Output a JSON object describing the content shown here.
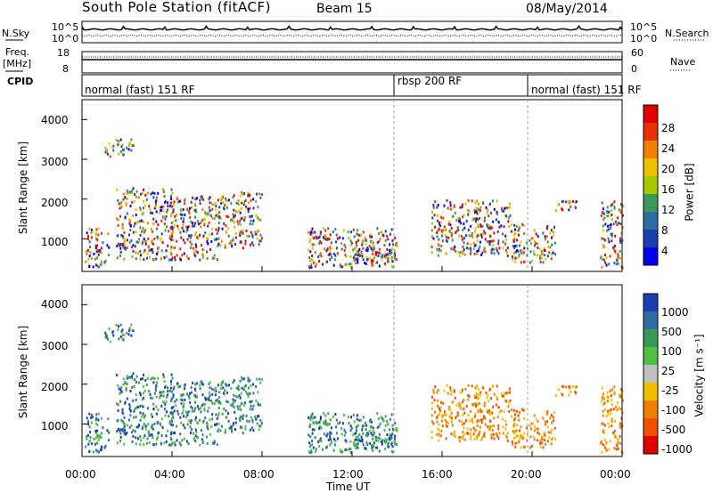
{
  "header": {
    "title": "South Pole Station (fitACF)",
    "beam": "Beam 15",
    "date": "08/May/2014"
  },
  "left_labels": {
    "nsky": "N.Sky",
    "freq_line1": "Freq.",
    "freq_line2": "[MHz]",
    "cpid": "CPID"
  },
  "right_labels": {
    "nsearch": "N.Search",
    "nave": "Nave"
  },
  "colors": {
    "power_scale": [
      "#0000ee",
      "#1a3fb0",
      "#2c6fa0",
      "#3a9a5a",
      "#a8c800",
      "#f0c000",
      "#f08000",
      "#e83000",
      "#e00000"
    ],
    "velocity_scale": [
      "#1a3fb0",
      "#2c6fa0",
      "#3a9a5a",
      "#4fc040",
      "#c0c0c0",
      "#f0c000",
      "#f08000",
      "#f05000",
      "#e00000"
    ]
  },
  "chart_data": [
    {
      "type": "line",
      "name": "noise-panel",
      "left_ticks": [
        "10^5",
        "10^0"
      ],
      "right_ticks": [
        "10^5",
        "10^0"
      ],
      "series": [
        {
          "name": "N.Sky"
        },
        {
          "name": "N.Search"
        }
      ]
    },
    {
      "type": "line",
      "name": "freq-nave-panel",
      "left_ticks": [
        "18",
        "8"
      ],
      "right_ticks": [
        "60",
        "0"
      ],
      "ylim_left": [
        8,
        18
      ],
      "ylim_right": [
        0,
        60
      ],
      "series": [
        {
          "name": "Freq.",
          "value": 12
        },
        {
          "name": "Nave",
          "value": 52
        }
      ]
    },
    {
      "type": "table",
      "name": "cpid-bar",
      "segments": [
        {
          "label": "normal (fast) 151 RF",
          "start_h": 0,
          "end_h": 14
        },
        {
          "label": "rbsp 200 RF",
          "start_h": 14,
          "end_h": 20
        },
        {
          "label": "normal (fast) 151 RF",
          "start_h": 20,
          "end_h": 24
        }
      ]
    },
    {
      "type": "heatmap",
      "name": "power-panel",
      "ylabel": "Slant Range [km]",
      "yticks": [
        "4000",
        "3000",
        "2000",
        "1000"
      ],
      "ylim": [
        180,
        4500
      ],
      "xlim": [
        0,
        24
      ],
      "colorbar_label": "Power [dB]",
      "colorbar_ticks": [
        "28",
        "24",
        "20",
        "16",
        "12",
        "8",
        "4"
      ],
      "clim": [
        0,
        30
      ]
    },
    {
      "type": "heatmap",
      "name": "velocity-panel",
      "ylabel": "Slant Range [km]",
      "yticks": [
        "4000",
        "3000",
        "2000",
        "1000"
      ],
      "ylim": [
        180,
        4500
      ],
      "xlim": [
        0,
        24
      ],
      "xlabel": "Time UT",
      "xticks": [
        "00:00",
        "04:00",
        "08:00",
        "12:00",
        "16:00",
        "20:00",
        "00:00"
      ],
      "colorbar_label": "Velocity [m s⁻¹]",
      "colorbar_ticks": [
        "1000",
        "500",
        "100",
        "25",
        "-25",
        "-100",
        "-500",
        "-1000"
      ],
      "clim": [
        -1000,
        1000
      ]
    }
  ]
}
